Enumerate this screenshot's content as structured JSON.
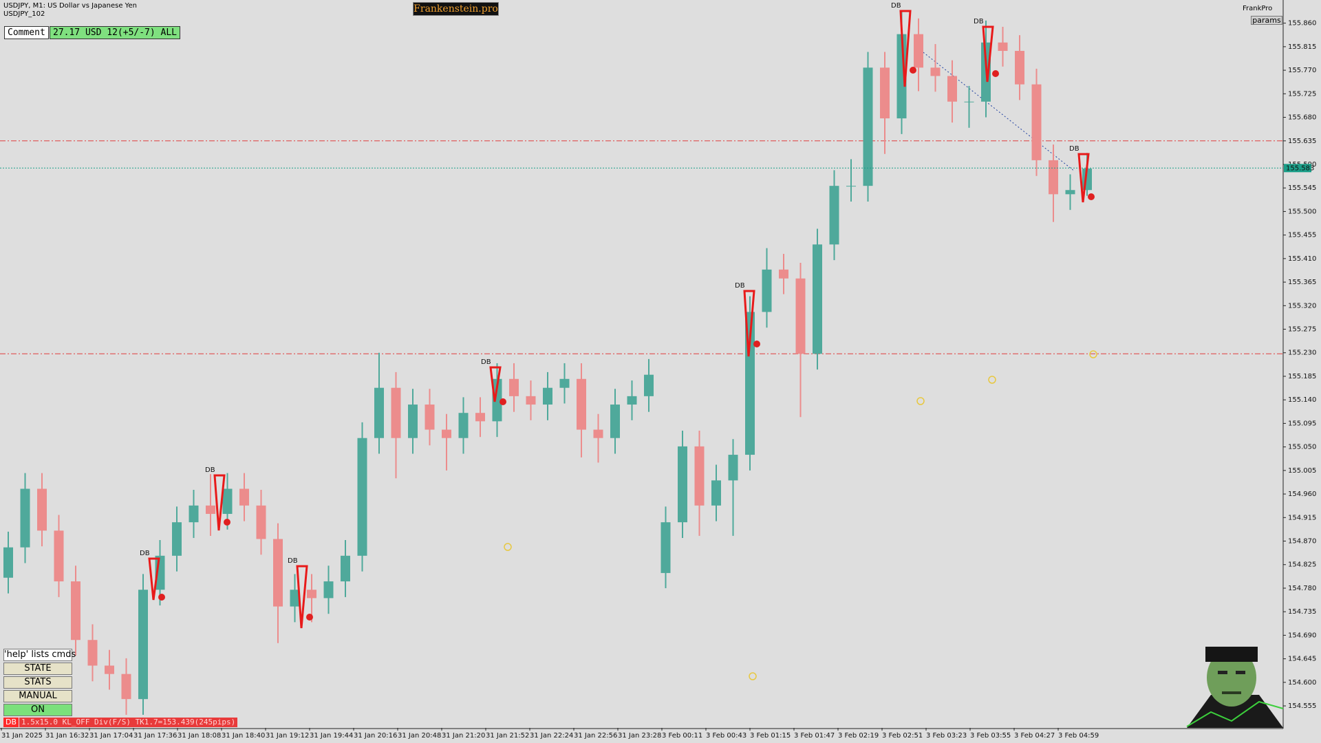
{
  "header": {
    "symbol": "USDJPY, M1:  US Dollar vs Japanese Yen",
    "account": "USDJPY_102",
    "brand": "Frankenstein.pro",
    "ea": "FrankPro",
    "params": "params"
  },
  "panel": {
    "comment_label": "Comment",
    "comment": "27.17 USD 12(+5/-7) ALL",
    "buttons": [
      "'help' lists cmds",
      "STATE",
      "STATS",
      "MANUAL",
      "ON"
    ]
  },
  "status": {
    "tag": "DB",
    "text": "1.5x15.0 KL_OFF Div(F/S) TK1.7=153.439(245pips)"
  },
  "chart_data": {
    "type": "candlestick",
    "up_color": "#4fa99b",
    "down_color": "#ec8c8c",
    "ylim": [
      154.513,
      155.899
    ],
    "yticks": [
      {
        "value": 155.86,
        "label": "155.860"
      },
      155.815,
      {
        "value": 155.77,
        "label": "155.770"
      },
      155.725,
      {
        "value": 155.68,
        "label": "155.680"
      },
      155.635,
      {
        "value": 155.59,
        "label": "155.590"
      },
      155.545,
      {
        "value": 155.5,
        "label": "155.500"
      },
      155.455,
      {
        "value": 155.41,
        "label": "155.410"
      },
      155.365,
      {
        "value": 155.32,
        "label": "155.320"
      },
      155.275,
      {
        "value": 155.23,
        "label": "155.230"
      },
      155.185,
      {
        "value": 155.14,
        "label": "155.140"
      },
      155.095,
      {
        "value": 155.05,
        "label": "155.050"
      },
      155.005,
      {
        "value": 154.96,
        "label": "154.960"
      },
      154.915,
      {
        "value": 154.87,
        "label": "154.870"
      },
      154.825,
      {
        "value": 154.78,
        "label": "154.780"
      },
      154.735,
      {
        "value": 154.69,
        "label": "154.690"
      },
      154.645,
      {
        "value": 154.6,
        "label": "154.600"
      },
      154.555
    ],
    "xlabels": [
      "31 Jan 2025",
      "31 Jan 16:32",
      "31 Jan 17:04",
      "31 Jan 17:36",
      "31 Jan 18:08",
      "31 Jan 18:40",
      "31 Jan 19:12",
      "31 Jan 19:44",
      "31 Jan 20:16",
      "31 Jan 20:48",
      "31 Jan 21:20",
      "31 Jan 21:52",
      "31 Jan 22:24",
      "31 Jan 22:56",
      "31 Jan 23:28",
      "3 Feb 00:11",
      "3 Feb 00:43",
      "3 Feb 01:15",
      "3 Feb 01:47",
      "3 Feb 02:19",
      "3 Feb 02:51",
      "3 Feb 03:23",
      "3 Feb 03:55",
      "3 Feb 04:27",
      "3 Feb 04:59"
    ],
    "open": [
      154.8,
      154.858,
      154.97,
      154.89,
      154.793,
      154.681,
      154.632,
      154.616,
      154.568,
      154.777,
      154.842,
      154.906,
      154.938,
      154.922,
      154.97,
      154.938,
      154.874,
      154.745,
      154.777,
      154.761,
      154.793,
      154.842,
      155.067,
      155.163,
      155.067,
      155.131,
      155.083,
      155.067,
      155.115,
      155.099,
      155.18,
      155.147,
      155.131,
      155.163,
      155.18,
      155.083,
      155.067,
      155.131,
      155.147,
      154.809,
      154.906,
      155.051,
      154.938,
      154.986,
      155.035,
      155.308,
      155.389,
      155.372,
      155.228,
      155.437,
      155.549,
      155.549,
      155.775,
      155.678,
      155.839,
      155.775,
      155.759,
      155.71,
      155.71,
      155.823,
      155.807,
      155.743,
      155.598,
      155.533,
      155.541
    ],
    "high": [
      154.888,
      155.0,
      155.0,
      154.92,
      154.823,
      154.711,
      154.662,
      154.646,
      154.807,
      154.872,
      154.936,
      154.968,
      154.998,
      155.0,
      155.0,
      154.968,
      154.904,
      154.807,
      154.807,
      154.823,
      154.872,
      155.097,
      155.23,
      155.193,
      155.161,
      155.161,
      155.113,
      155.145,
      155.145,
      155.21,
      155.21,
      155.177,
      155.193,
      155.21,
      155.21,
      155.113,
      155.161,
      155.177,
      155.218,
      154.936,
      155.081,
      155.081,
      155.016,
      155.065,
      155.338,
      155.43,
      155.419,
      155.402,
      155.467,
      155.579,
      155.6,
      155.805,
      155.805,
      155.885,
      155.869,
      155.82,
      155.789,
      155.74,
      155.865,
      155.853,
      155.837,
      155.773,
      155.628,
      155.571,
      155.612
    ],
    "low": [
      154.77,
      154.828,
      154.86,
      154.763,
      154.651,
      154.602,
      154.586,
      154.538,
      154.538,
      154.747,
      154.812,
      154.876,
      154.88,
      154.892,
      154.908,
      154.844,
      154.675,
      154.715,
      154.715,
      154.731,
      154.763,
      154.812,
      155.037,
      154.99,
      155.037,
      155.053,
      155.005,
      155.037,
      155.069,
      155.069,
      155.117,
      155.101,
      155.101,
      155.133,
      155.03,
      155.02,
      155.037,
      155.101,
      155.117,
      154.78,
      154.876,
      154.88,
      154.908,
      154.88,
      155.005,
      155.278,
      155.342,
      155.107,
      155.198,
      155.407,
      155.519,
      155.519,
      155.61,
      155.648,
      155.73,
      155.729,
      155.67,
      155.66,
      155.68,
      155.777,
      155.713,
      155.568,
      155.48,
      155.503,
      155.53
    ],
    "close": [
      154.858,
      154.97,
      154.89,
      154.793,
      154.681,
      154.632,
      154.616,
      154.568,
      154.777,
      154.842,
      154.906,
      154.938,
      154.922,
      154.97,
      154.938,
      154.874,
      154.745,
      154.777,
      154.761,
      154.793,
      154.842,
      155.067,
      155.163,
      155.067,
      155.131,
      155.083,
      155.067,
      155.115,
      155.099,
      155.18,
      155.147,
      155.131,
      155.163,
      155.18,
      155.083,
      155.067,
      155.131,
      155.147,
      155.188,
      154.906,
      155.051,
      154.938,
      154.986,
      155.035,
      155.308,
      155.389,
      155.372,
      155.228,
      155.437,
      155.549,
      155.549,
      155.775,
      155.678,
      155.839,
      155.775,
      155.759,
      155.71,
      155.71,
      155.823,
      155.807,
      155.743,
      155.598,
      155.533,
      155.541,
      155.582
    ],
    "levels": [
      155.635,
      155.228
    ],
    "level_color": "#e03c3c",
    "bid": 155.583,
    "bid_color": "#1a9e88",
    "annotations": [
      "DB",
      "DB",
      "DB",
      "DB",
      "DB",
      "DB",
      "DB",
      "DB"
    ],
    "grid": false
  }
}
